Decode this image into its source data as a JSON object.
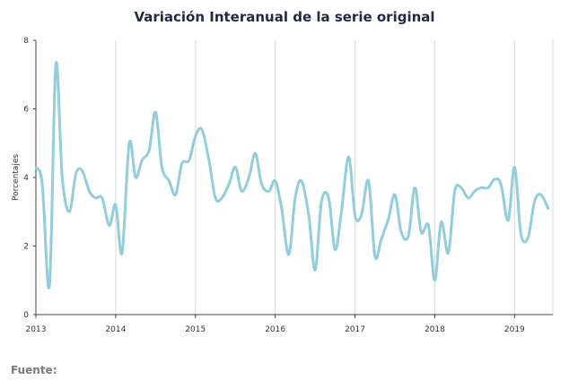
{
  "chart_data": {
    "type": "line",
    "title": "Variación Interanual de la serie original",
    "xlabel": "",
    "ylabel": "Porcentajes",
    "source": "Fuente:",
    "xlim": [
      2013.0,
      2019.48
    ],
    "ylim": [
      0,
      8
    ],
    "yticks": [
      "0",
      "2",
      "4",
      "6",
      "8"
    ],
    "xticks": [
      "2013",
      "2014",
      "2015",
      "2016",
      "2017",
      "2018",
      "2019"
    ],
    "grid": "vertical",
    "color": "#92cddc",
    "series": [
      {
        "x": [
          2013.0,
          2013.08,
          2013.17,
          2013.25,
          2013.33,
          2013.42,
          2013.5,
          2013.58,
          2013.67,
          2013.75,
          2013.83,
          2013.92,
          2014.0,
          2014.08,
          2014.17,
          2014.25,
          2014.33,
          2014.42,
          2014.5,
          2014.58,
          2014.67,
          2014.75,
          2014.83,
          2014.92,
          2015.0,
          2015.08,
          2015.17,
          2015.25,
          2015.33,
          2015.42,
          2015.5,
          2015.58,
          2015.67,
          2015.75,
          2015.83,
          2015.92,
          2016.0,
          2016.08,
          2016.17,
          2016.25,
          2016.33,
          2016.42,
          2016.5,
          2016.58,
          2016.67,
          2016.75,
          2016.83,
          2016.92,
          2017.0,
          2017.08,
          2017.17,
          2017.25,
          2017.33,
          2017.42,
          2017.5,
          2017.58,
          2017.67,
          2017.75,
          2017.83,
          2017.92,
          2018.0,
          2018.08,
          2018.17,
          2018.25,
          2018.33,
          2018.42,
          2018.5,
          2018.58,
          2018.67,
          2018.75,
          2018.83,
          2018.92,
          2019.0,
          2019.08,
          2019.17,
          2019.25,
          2019.33,
          2019.42
        ],
        "values": [
          4.3,
          3.8,
          0.85,
          7.3,
          4.0,
          3.0,
          4.1,
          4.2,
          3.6,
          3.4,
          3.4,
          2.6,
          3.2,
          1.8,
          5.0,
          4.0,
          4.5,
          4.8,
          5.9,
          4.3,
          3.9,
          3.5,
          4.4,
          4.5,
          5.2,
          5.4,
          4.5,
          3.4,
          3.4,
          3.8,
          4.3,
          3.6,
          4.0,
          4.7,
          3.8,
          3.6,
          3.9,
          3.1,
          1.75,
          3.4,
          3.9,
          2.9,
          1.3,
          3.3,
          3.4,
          1.9,
          3.0,
          4.6,
          2.9,
          2.9,
          3.9,
          1.7,
          2.2,
          2.8,
          3.5,
          2.4,
          2.3,
          3.7,
          2.4,
          2.6,
          1.0,
          2.7,
          1.8,
          3.6,
          3.7,
          3.4,
          3.6,
          3.7,
          3.7,
          3.95,
          3.8,
          2.75,
          4.3,
          2.35,
          2.25,
          3.3,
          3.5,
          3.1
        ]
      }
    ]
  }
}
